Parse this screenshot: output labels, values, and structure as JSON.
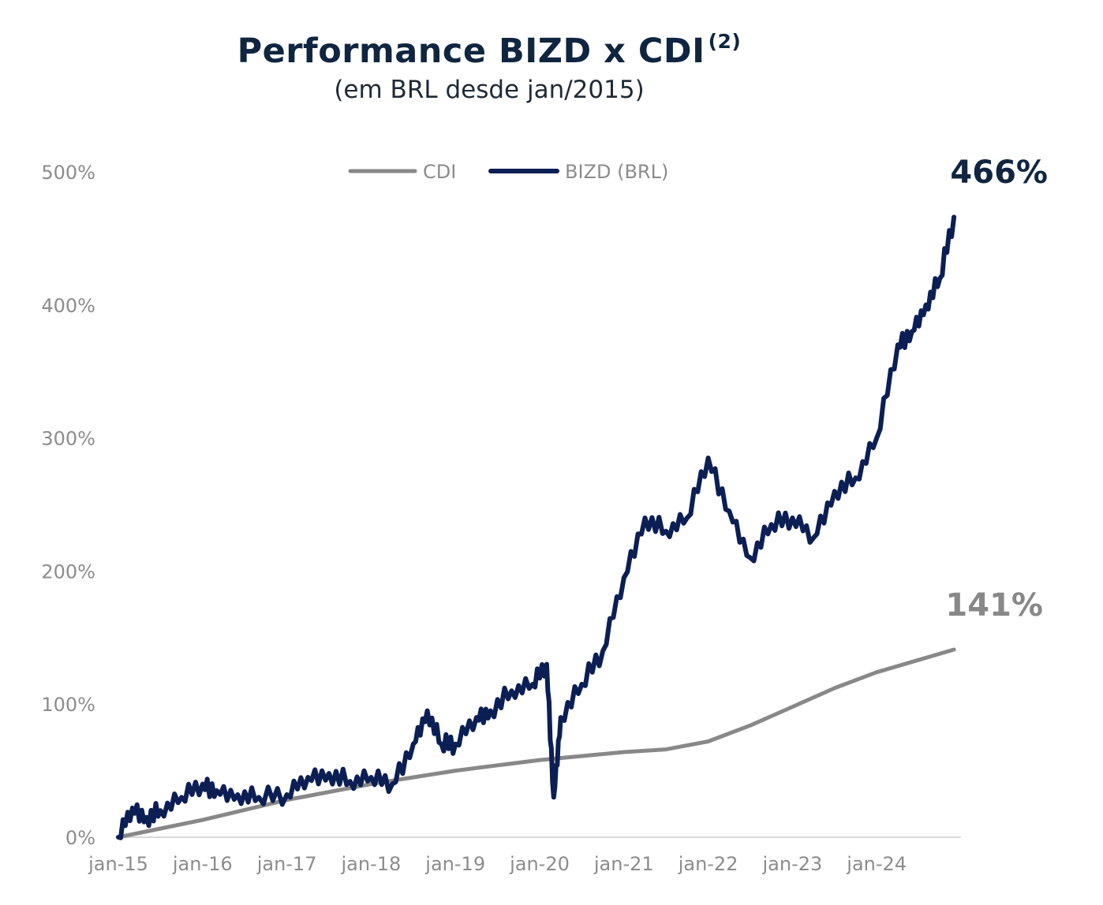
{
  "title": "Performance BIZD x CDI",
  "title_note": "(2)",
  "subtitle": "(em BRL desde jan/2015)",
  "colors": {
    "bizd": "#0b1f55",
    "cdi": "#888888",
    "title": "#0f2540"
  },
  "chart_data": {
    "type": "line",
    "x_range": [
      "2015-01",
      "2025-01"
    ],
    "ylim": [
      0,
      500
    ],
    "yticks": [
      "0%",
      "100%",
      "200%",
      "300%",
      "400%",
      "500%"
    ],
    "xticks": [
      "jan-15",
      "jan-16",
      "jan-17",
      "jan-18",
      "jan-19",
      "jan-20",
      "jan-21",
      "jan-22",
      "jan-23",
      "jan-24"
    ],
    "legend_position": "top-center",
    "series": [
      {
        "name": "CDI",
        "color": "#888888",
        "end_label": "141%",
        "x": [
          "2015-01",
          "2016-01",
          "2017-01",
          "2018-01",
          "2019-01",
          "2020-01",
          "2021-01",
          "2021-07",
          "2022-01",
          "2022-07",
          "2023-01",
          "2023-07",
          "2024-01",
          "2024-12"
        ],
        "y": [
          0,
          13,
          28,
          40,
          50,
          58,
          64,
          66,
          72,
          84,
          98,
          112,
          124,
          141
        ]
      },
      {
        "name": "BIZD (BRL)",
        "color": "#0b1f55",
        "end_label": "466%",
        "x": [
          "2015-01",
          "2015-03",
          "2015-05",
          "2015-07",
          "2015-10",
          "2016-01",
          "2016-03",
          "2016-06",
          "2016-09",
          "2017-01",
          "2017-04",
          "2017-07",
          "2017-10",
          "2018-01",
          "2018-04",
          "2018-07",
          "2018-09",
          "2018-11",
          "2019-01",
          "2019-04",
          "2019-06",
          "2019-09",
          "2019-12",
          "2020-02",
          "2020-03",
          "2020-04",
          "2020-07",
          "2020-10",
          "2021-01",
          "2021-04",
          "2021-07",
          "2021-10",
          "2022-01",
          "2022-04",
          "2022-07",
          "2022-10",
          "2023-01",
          "2023-04",
          "2023-07",
          "2023-10",
          "2024-01",
          "2024-04",
          "2024-06",
          "2024-08",
          "2024-10",
          "2024-12"
        ],
        "y": [
          0,
          22,
          15,
          20,
          30,
          40,
          35,
          32,
          30,
          32,
          45,
          48,
          42,
          45,
          40,
          70,
          95,
          70,
          70,
          90,
          95,
          110,
          115,
          130,
          30,
          90,
          115,
          140,
          195,
          240,
          230,
          240,
          285,
          245,
          210,
          235,
          240,
          225,
          260,
          270,
          300,
          370,
          380,
          400,
          420,
          466
        ]
      }
    ]
  }
}
